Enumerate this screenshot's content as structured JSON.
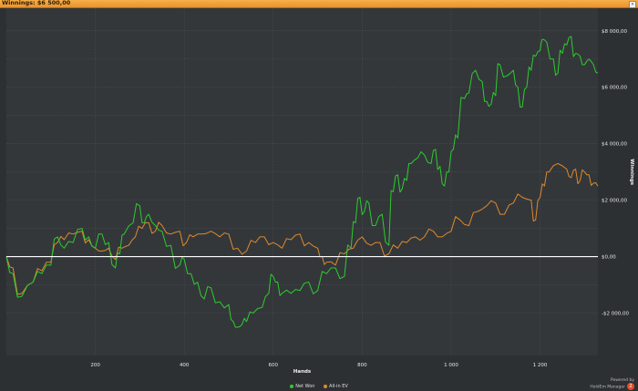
{
  "window": {
    "title": "Winnings: $6 500,00"
  },
  "chart_data": {
    "type": "line",
    "xlabel": "Hands",
    "ylabel": "Winnings",
    "xlim": [
      0,
      1330
    ],
    "ylim": [
      -3500,
      8800
    ],
    "x_ticks": [
      200,
      400,
      600,
      800,
      1000,
      1200
    ],
    "x_tick_labels": [
      "200",
      "400",
      "600",
      "800",
      "1 000",
      "1 200"
    ],
    "y_ticks": [
      -2000,
      0,
      2000,
      4000,
      6000,
      8000
    ],
    "y_tick_labels": [
      "-$2 000,00",
      "$0,00",
      "$2 000,00",
      "$4 000,00",
      "$6 000,00",
      "$8 000,00"
    ],
    "grid": true,
    "legend_position": "bottom",
    "zero_line_color": "#ffffff",
    "series": [
      {
        "name": "Net Won",
        "color": "#2ecc2e",
        "x": [
          0,
          15,
          35,
          60,
          80,
          100,
          115,
          130,
          150,
          170,
          185,
          200,
          215,
          230,
          245,
          255,
          265,
          285,
          300,
          310,
          320,
          335,
          350,
          370,
          390,
          400,
          415,
          430,
          445,
          460,
          480,
          500,
          510,
          520,
          530,
          540,
          555,
          575,
          590,
          600,
          610,
          620,
          640,
          660,
          680,
          700,
          720,
          740,
          760,
          775,
          785,
          795,
          805,
          815,
          830,
          845,
          860,
          870,
          880,
          890,
          900,
          910,
          925,
          940,
          955,
          965,
          975,
          985,
          995,
          1005,
          1015,
          1030,
          1040,
          1055,
          1070,
          1080,
          1090,
          1100,
          1110,
          1125,
          1140,
          1150,
          1160,
          1170,
          1180,
          1190,
          1200,
          1205,
          1215,
          1230,
          1240,
          1250,
          1260,
          1270,
          1280,
          1290,
          1300,
          1310,
          1320,
          1330
        ],
        "values": [
          0,
          -600,
          -1400,
          -900,
          -600,
          -300,
          700,
          300,
          500,
          1000,
          700,
          300,
          800,
          500,
          -400,
          100,
          800,
          1200,
          1800,
          1200,
          1500,
          1100,
          900,
          400,
          -300,
          -100,
          -600,
          -900,
          -1500,
          -1100,
          -1600,
          -1700,
          -2300,
          -2500,
          -2400,
          -2300,
          -2000,
          -1800,
          -1300,
          -700,
          -900,
          -1300,
          -1300,
          -1200,
          -900,
          -1200,
          -600,
          -400,
          -700,
          300,
          1200,
          2100,
          1600,
          1900,
          1100,
          1500,
          400,
          2300,
          2900,
          2400,
          2700,
          3300,
          3500,
          3600,
          3300,
          3800,
          3200,
          2500,
          3000,
          3800,
          4200,
          5600,
          5800,
          6600,
          6200,
          5500,
          5400,
          5700,
          6800,
          6400,
          6600,
          6000,
          5300,
          6000,
          6600,
          7100,
          7300,
          7700,
          7600,
          7000,
          6500,
          7200,
          7500,
          7800,
          7200,
          7100,
          6800,
          7000,
          6800,
          6500
        ]
      },
      {
        "name": "All-in EV",
        "color": "#e0892c",
        "x": [
          0,
          15,
          35,
          60,
          80,
          100,
          115,
          130,
          150,
          170,
          185,
          200,
          215,
          230,
          245,
          260,
          275,
          290,
          305,
          320,
          335,
          350,
          370,
          390,
          405,
          420,
          440,
          460,
          480,
          500,
          520,
          540,
          560,
          580,
          600,
          620,
          640,
          660,
          680,
          700,
          710,
          720,
          740,
          760,
          780,
          800,
          820,
          840,
          860,
          880,
          900,
          920,
          940,
          960,
          980,
          1000,
          1020,
          1040,
          1060,
          1080,
          1100,
          1120,
          1140,
          1160,
          1180,
          1190,
          1200,
          1210,
          1220,
          1240,
          1260,
          1270,
          1280,
          1290,
          1300,
          1310,
          1320,
          1330
        ],
        "values": [
          0,
          -400,
          -1300,
          -900,
          -500,
          -200,
          500,
          600,
          800,
          900,
          600,
          300,
          200,
          300,
          -100,
          300,
          400,
          700,
          1000,
          1200,
          900,
          1100,
          800,
          900,
          500,
          700,
          800,
          900,
          700,
          800,
          300,
          200,
          500,
          700,
          500,
          300,
          600,
          800,
          500,
          300,
          0,
          -200,
          -300,
          100,
          300,
          700,
          400,
          500,
          100,
          300,
          500,
          700,
          700,
          900,
          700,
          900,
          1300,
          1100,
          1600,
          1800,
          1900,
          1500,
          1900,
          2100,
          2000,
          1300,
          2100,
          2500,
          3000,
          3300,
          3100,
          2800,
          3100,
          2700,
          3000,
          2900,
          2600,
          2500
        ]
      }
    ]
  },
  "legend": [
    {
      "label": "Net Won",
      "color": "#2ecc2e"
    },
    {
      "label": "All-in EV",
      "color": "#e0892c"
    }
  ],
  "branding": {
    "powered_by": "Powered by",
    "product": "HoldEm Manager",
    "badge": "2"
  }
}
